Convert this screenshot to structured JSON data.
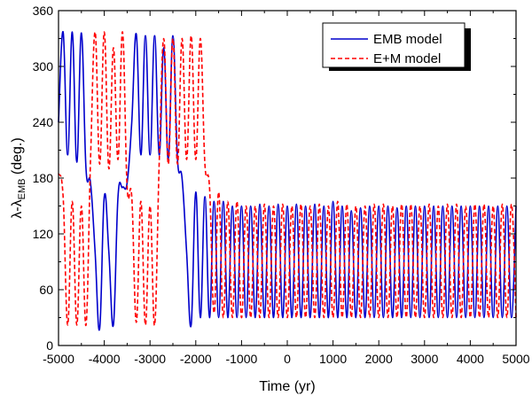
{
  "chart_data": {
    "type": "line",
    "xlabel": "Time (yr)",
    "ylabel": {
      "main": "λ-λ",
      "subscript": "EMB",
      "suffix": " (deg.)"
    },
    "xlim": [
      -5000,
      5000
    ],
    "ylim": [
      0,
      360
    ],
    "x_ticks": [
      "-5000",
      "-4000",
      "-3000",
      "-2000",
      "-1000",
      "0",
      "1000",
      "2000",
      "3000",
      "4000",
      "5000"
    ],
    "y_ticks": [
      "0",
      "60",
      "120",
      "180",
      "240",
      "300",
      "360"
    ],
    "legend": {
      "position": "top-right",
      "entries": [
        "EMB model",
        "E+M model"
      ]
    },
    "series": [
      {
        "name": "EMB model",
        "color": "#0000cc",
        "style": "solid",
        "x": [
          -5000,
          -4900,
          -4800,
          -4700,
          -4600,
          -4500,
          -4400,
          -4300,
          -4200,
          -4100,
          -4000,
          -3900,
          -3800,
          -3700,
          -3600,
          -3500,
          -3400,
          -3300,
          -3200,
          -3100,
          -3000,
          -2900,
          -2800,
          -2700,
          -2600,
          -2500,
          -2400,
          -2300,
          -2200,
          -2100,
          -2000,
          -1900,
          -1800,
          -1700,
          -1600,
          -1500,
          -1400,
          -1300,
          -1200,
          -1100,
          -1000,
          -900,
          -800,
          -700,
          -600,
          -500,
          -400,
          -300,
          -200,
          -100,
          0,
          100,
          200,
          300,
          400,
          500,
          600,
          700,
          800,
          900,
          1000,
          1100,
          1200,
          1300,
          1400,
          1500,
          1600,
          1700,
          1800,
          1900,
          2000,
          2100,
          2200,
          2300,
          2400,
          2500,
          2600,
          2700,
          2800,
          2900,
          3000,
          3100,
          3200,
          3300,
          3400,
          3500,
          3600,
          3700,
          3800,
          3900,
          4000,
          4100,
          4200,
          4300,
          4400,
          4500,
          4600,
          4700,
          4800,
          4900,
          5000
        ],
        "y": [
          240,
          337,
          205,
          337,
          197,
          336,
          190,
          175,
          100,
          18,
          160,
          100,
          22,
          160,
          170,
          175,
          240,
          335,
          205,
          333,
          205,
          333,
          205,
          320,
          200,
          333,
          200,
          180,
          100,
          22,
          165,
          30,
          160,
          30,
          155,
          30,
          155,
          30,
          150,
          30,
          150,
          30,
          150,
          30,
          152,
          30,
          150,
          30,
          152,
          30,
          150,
          30,
          152,
          30,
          150,
          30,
          152,
          30,
          150,
          30,
          155,
          30,
          150,
          30,
          145,
          30,
          148,
          30,
          150,
          30,
          150,
          30,
          150,
          30,
          148,
          30,
          150,
          30,
          150,
          30,
          150,
          30,
          150,
          30,
          150,
          30,
          150,
          30,
          150,
          30,
          150,
          30,
          150,
          30,
          150,
          30,
          150,
          30,
          150,
          30,
          150
        ]
      },
      {
        "name": "E+M model",
        "color": "#ff0000",
        "style": "dashed",
        "x": [
          -5000,
          -4900,
          -4800,
          -4700,
          -4600,
          -4500,
          -4400,
          -4300,
          -4200,
          -4100,
          -4000,
          -3900,
          -3800,
          -3700,
          -3600,
          -3500,
          -3400,
          -3300,
          -3200,
          -3100,
          -3000,
          -2900,
          -2800,
          -2700,
          -2600,
          -2500,
          -2400,
          -2300,
          -2200,
          -2100,
          -2000,
          -1900,
          -1800,
          -1700,
          -1600,
          -1500,
          -1400,
          -1300,
          -1200,
          -1100,
          -1000,
          -900,
          -800,
          -700,
          -600,
          -500,
          -400,
          -300,
          -200,
          -100,
          0,
          100,
          200,
          300,
          400,
          500,
          600,
          700,
          800,
          900,
          1000,
          1100,
          1200,
          1300,
          1400,
          1500,
          1600,
          1700,
          1800,
          1900,
          2000,
          2100,
          2200,
          2300,
          2400,
          2500,
          2600,
          2700,
          2800,
          2900,
          3000,
          3100,
          3200,
          3300,
          3400,
          3500,
          3600,
          3700,
          3800,
          3900,
          4000,
          4100,
          4200,
          4300,
          4400,
          4500,
          4600,
          4700,
          4800,
          4900,
          5000
        ],
        "y": [
          185,
          160,
          22,
          155,
          22,
          150,
          22,
          200,
          337,
          195,
          337,
          190,
          320,
          200,
          337,
          170,
          160,
          25,
          155,
          22,
          150,
          22,
          195,
          330,
          195,
          330,
          195,
          330,
          200,
          333,
          200,
          330,
          195,
          170,
          35,
          165,
          30,
          155,
          30,
          155,
          30,
          150,
          30,
          150,
          30,
          152,
          30,
          150,
          30,
          152,
          30,
          150,
          30,
          152,
          30,
          150,
          30,
          152,
          30,
          150,
          30,
          155,
          30,
          152,
          30,
          150,
          30,
          150,
          30,
          152,
          30,
          152,
          30,
          150,
          30,
          152,
          30,
          152,
          30,
          150,
          30,
          152,
          30,
          150,
          30,
          152,
          30,
          152,
          30,
          150,
          30,
          152,
          30,
          152,
          30,
          150,
          30,
          152,
          30,
          152,
          30
        ]
      }
    ]
  }
}
